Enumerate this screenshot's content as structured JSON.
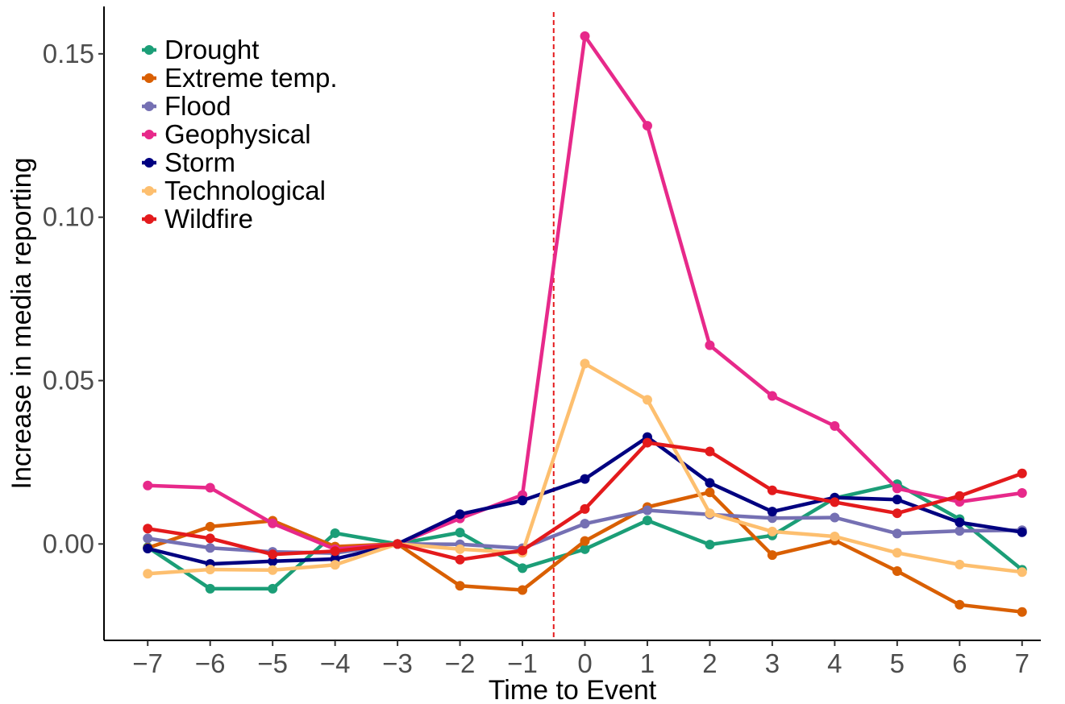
{
  "chart_data": {
    "type": "line",
    "title": "",
    "xlabel": "Time to Event",
    "ylabel": "Increase in media reporting",
    "x": [
      -7,
      -6,
      -5,
      -4,
      -3,
      -2,
      -1,
      0,
      1,
      2,
      3,
      4,
      5,
      6,
      7
    ],
    "x_tick_labels": [
      "−7",
      "−6",
      "−5",
      "−4",
      "−3",
      "−2",
      "−1",
      "0",
      "1",
      "2",
      "3",
      "4",
      "5",
      "6",
      "7"
    ],
    "y_ticks": [
      0.0,
      0.05,
      0.1,
      0.15
    ],
    "y_tick_labels": [
      "0.00",
      "0.05",
      "0.10",
      "0.15"
    ],
    "ylim": [
      -0.0295,
      0.1645
    ],
    "xlim": [
      -7.7,
      7.3
    ],
    "grid": false,
    "legend_position": "top-left",
    "reference_line": {
      "x": -0.5,
      "color": "#e41a1c",
      "style": "dashed"
    },
    "series": [
      {
        "name": "Drought",
        "color": "#1b9e77",
        "values": [
          -0.001,
          -0.0137,
          -0.0137,
          0.0033,
          0.0,
          0.0035,
          -0.0074,
          -0.0016,
          0.0072,
          -0.0002,
          0.0026,
          0.014,
          0.0183,
          0.0076,
          -0.0079
        ]
      },
      {
        "name": "Extreme temp.",
        "color": "#d95f02",
        "values": [
          -0.0012,
          0.0053,
          0.0071,
          -0.0008,
          0.0,
          -0.0128,
          -0.0141,
          0.0009,
          0.0113,
          0.0158,
          -0.0034,
          0.0011,
          -0.0083,
          -0.0186,
          -0.0208
        ]
      },
      {
        "name": "Flood",
        "color": "#7570b3",
        "values": [
          0.0017,
          -0.0012,
          -0.0024,
          -0.0028,
          0.0,
          -0.0001,
          -0.0013,
          0.0062,
          0.0103,
          0.009,
          0.0079,
          0.0081,
          0.0032,
          0.004,
          0.0042
        ]
      },
      {
        "name": "Geophysical",
        "color": "#e7298a",
        "values": [
          0.0179,
          0.0172,
          0.0063,
          -0.0016,
          0.0,
          0.0078,
          0.015,
          0.1554,
          0.128,
          0.0608,
          0.0453,
          0.0361,
          0.017,
          0.0129,
          0.0156
        ]
      },
      {
        "name": "Storm",
        "color": "#000080",
        "values": [
          -0.0014,
          -0.0061,
          -0.0053,
          -0.0046,
          0.0,
          0.0091,
          0.0133,
          0.0199,
          0.0327,
          0.0187,
          0.0099,
          0.0142,
          0.0136,
          0.0066,
          0.0036
        ]
      },
      {
        "name": "Technological",
        "color": "#fdbf6f",
        "values": [
          -0.0091,
          -0.0078,
          -0.008,
          -0.0064,
          0.0,
          -0.0016,
          -0.0027,
          0.0552,
          0.0441,
          0.0094,
          0.0038,
          0.0023,
          -0.0027,
          -0.0063,
          -0.0086
        ]
      },
      {
        "name": "Wildfire",
        "color": "#e31a1c",
        "values": [
          0.0047,
          0.0017,
          -0.0032,
          -0.0022,
          0.0,
          -0.0048,
          -0.002,
          0.0107,
          0.031,
          0.0283,
          0.0164,
          0.0128,
          0.0094,
          0.0147,
          0.0216
        ]
      }
    ]
  }
}
